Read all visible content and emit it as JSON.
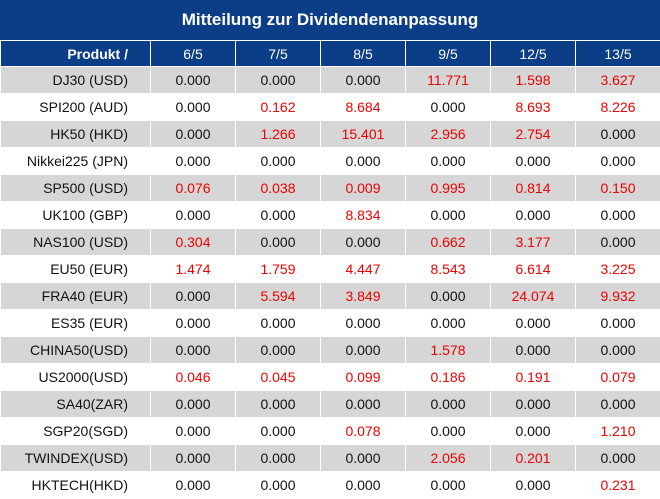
{
  "title": "Mitteilung zur Dividendenanpassung",
  "header": {
    "product_label": "Produkt /",
    "dates": [
      "6/5",
      "7/5",
      "8/5",
      "9/5",
      "12/5",
      "13/5"
    ]
  },
  "rows": [
    {
      "name": "DJ30 (USD)",
      "values": [
        "0.000",
        "0.000",
        "0.000",
        "11.771",
        "1.598",
        "3.627"
      ]
    },
    {
      "name": "SPI200 (AUD)",
      "values": [
        "0.000",
        "0.162",
        "8.684",
        "0.000",
        "8.693",
        "8.226"
      ]
    },
    {
      "name": "HK50 (HKD)",
      "values": [
        "0.000",
        "1.266",
        "15.401",
        "2.956",
        "2.754",
        "0.000"
      ]
    },
    {
      "name": "Nikkei225 (JPN)",
      "values": [
        "0.000",
        "0.000",
        "0.000",
        "0.000",
        "0.000",
        "0.000"
      ]
    },
    {
      "name": "SP500 (USD)",
      "values": [
        "0.076",
        "0.038",
        "0.009",
        "0.995",
        "0.814",
        "0.150"
      ]
    },
    {
      "name": "UK100 (GBP)",
      "values": [
        "0.000",
        "0.000",
        "8.834",
        "0.000",
        "0.000",
        "0.000"
      ]
    },
    {
      "name": "NAS100 (USD)",
      "values": [
        "0.304",
        "0.000",
        "0.000",
        "0.662",
        "3.177",
        "0.000"
      ]
    },
    {
      "name": "EU50 (EUR)",
      "values": [
        "1.474",
        "1.759",
        "4.447",
        "8.543",
        "6.614",
        "3.225"
      ]
    },
    {
      "name": "FRA40 (EUR)",
      "values": [
        "0.000",
        "5.594",
        "3.849",
        "0.000",
        "24.074",
        "9.932"
      ]
    },
    {
      "name": "ES35 (EUR)",
      "values": [
        "0.000",
        "0.000",
        "0.000",
        "0.000",
        "0.000",
        "0.000"
      ]
    },
    {
      "name": "CHINA50(USD)",
      "values": [
        "0.000",
        "0.000",
        "0.000",
        "1.578",
        "0.000",
        "0.000"
      ]
    },
    {
      "name": "US2000(USD)",
      "values": [
        "0.046",
        "0.045",
        "0.099",
        "0.186",
        "0.191",
        "0.079"
      ]
    },
    {
      "name": "SA40(ZAR)",
      "values": [
        "0.000",
        "0.000",
        "0.000",
        "0.000",
        "0.000",
        "0.000"
      ]
    },
    {
      "name": "SGP20(SGD)",
      "values": [
        "0.000",
        "0.000",
        "0.078",
        "0.000",
        "0.000",
        "1.210"
      ]
    },
    {
      "name": "TWINDEX(USD)",
      "values": [
        "0.000",
        "0.000",
        "0.000",
        "2.056",
        "0.201",
        "0.000"
      ]
    },
    {
      "name": "HKTECH(HKD)",
      "values": [
        "0.000",
        "0.000",
        "0.000",
        "0.000",
        "0.000",
        "0.231"
      ]
    }
  ],
  "colors": {
    "header_bg": "#0b3e86",
    "row_alt_bg": "#d6d6d6",
    "positive_value": "#ee0000",
    "zero_value": "#111111"
  }
}
